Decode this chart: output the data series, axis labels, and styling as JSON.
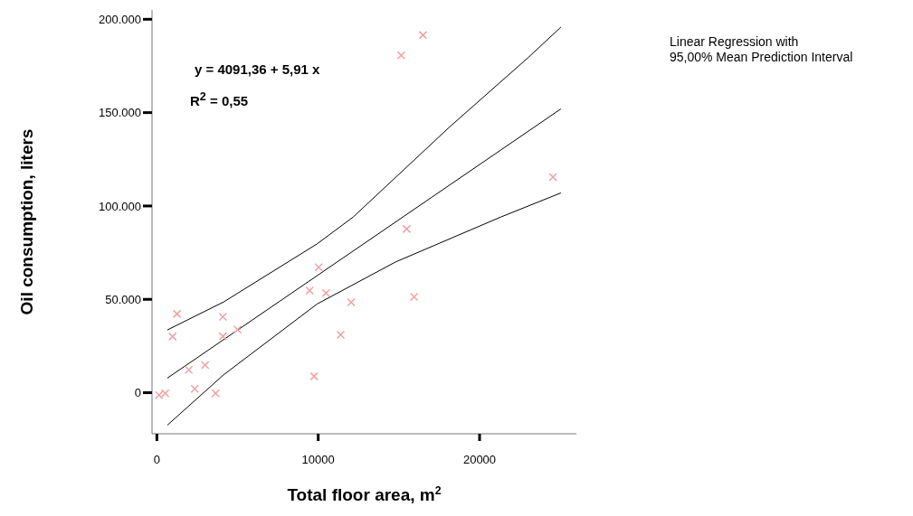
{
  "chart_data": {
    "type": "scatter",
    "xlabel": "Total floor area, m$^{2}$",
    "ylabel": "Oil consumption, liters",
    "annotations": [
      "y = 4091,36 + 5,91 x",
      "R$^{2}$ = 0,55",
      "Linear Regression with",
      "95,00% Mean Prediction Interval"
    ],
    "xlim": [
      -300,
      26000
    ],
    "xticks": [
      0,
      10000,
      20000
    ],
    "ylim": [
      -22000,
      205000
    ],
    "yticks": [
      {
        "value": 0,
        "label": "0"
      },
      {
        "value": 50000,
        "label": "50.000"
      },
      {
        "value": 100000,
        "label": "100.000"
      },
      {
        "value": 150000,
        "label": "150.000"
      },
      {
        "value": 200000,
        "label": "200.000"
      }
    ],
    "series": [
      {
        "color": "#f4a0a0",
        "marker": "cross",
        "x": [
          16490,
          15140,
          24550,
          15480,
          10030,
          9470,
          10480,
          12040,
          15940,
          1250,
          4090,
          970,
          4090,
          5000,
          11390,
          2990,
          1980,
          9750,
          2350,
          520,
          130,
          3640
        ],
        "values": [
          191500,
          180700,
          115500,
          87700,
          67200,
          54700,
          53400,
          48400,
          51300,
          42200,
          40700,
          30100,
          30200,
          33800,
          31000,
          14800,
          12200,
          8800,
          2100,
          -300,
          -1300,
          -300
        ]
      },
      {
        "type": "line",
        "color": "#000000",
        "x": [
          650,
          25040
        ],
        "values": [
          7800,
          152000
        ]
      },
      {
        "type": "line",
        "color": "#000000",
        "x": [
          650,
          4140,
          9930,
          12170,
          18150,
          23000,
          25040
        ],
        "values": [
          33600,
          48600,
          79700,
          94100,
          142400,
          179400,
          195800
        ]
      },
      {
        "type": "line",
        "color": "#000000",
        "x": [
          650,
          4140,
          9930,
          14790,
          21320,
          25040
        ],
        "values": [
          -17400,
          9600,
          47500,
          70000,
          94100,
          107000
        ]
      }
    ]
  }
}
